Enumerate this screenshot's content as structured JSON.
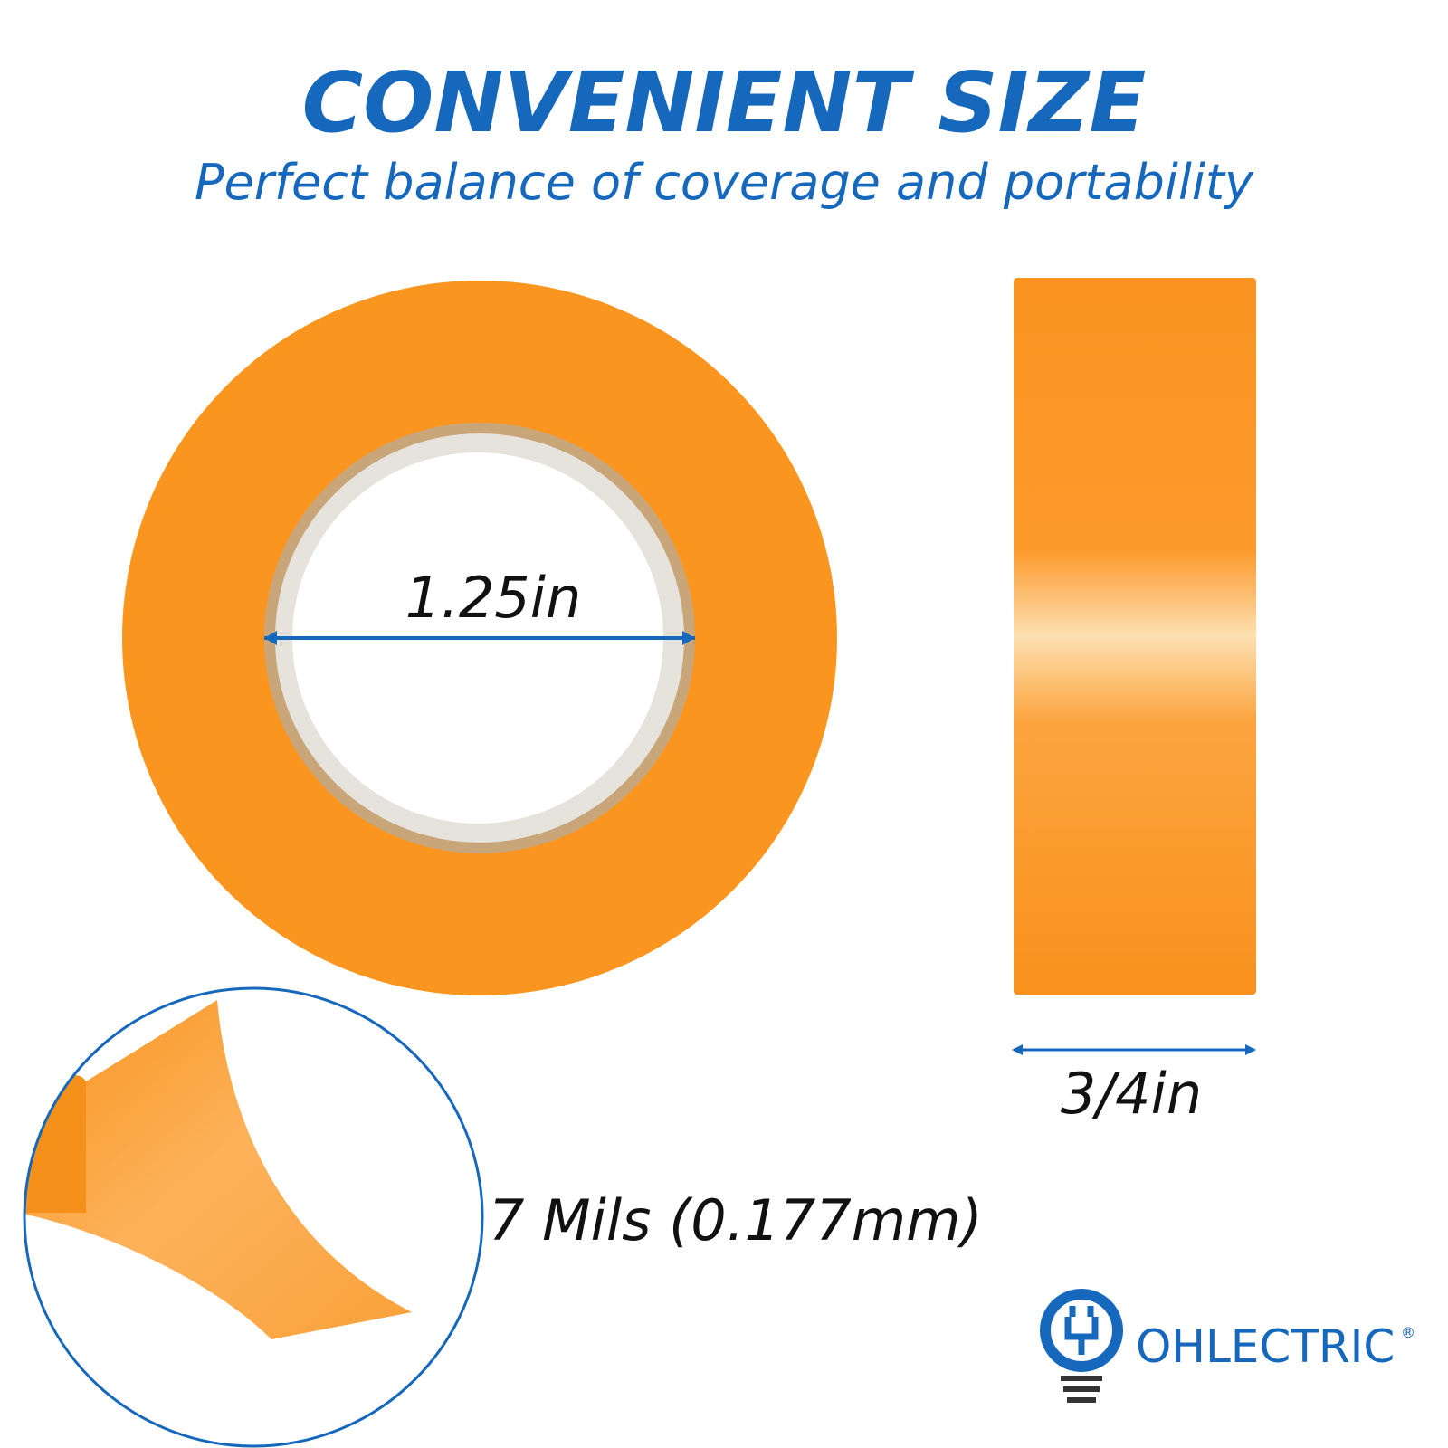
{
  "header": {
    "title": "CONVENIENT SIZE",
    "subtitle": "Perfect balance of coverage and portability"
  },
  "dimensions": {
    "inner_diameter": "1.25in",
    "width": "3/4in",
    "thickness": "7 Mils (0.177mm)"
  },
  "brand": {
    "name": "OHLECTRIC",
    "mark": "®"
  }
}
